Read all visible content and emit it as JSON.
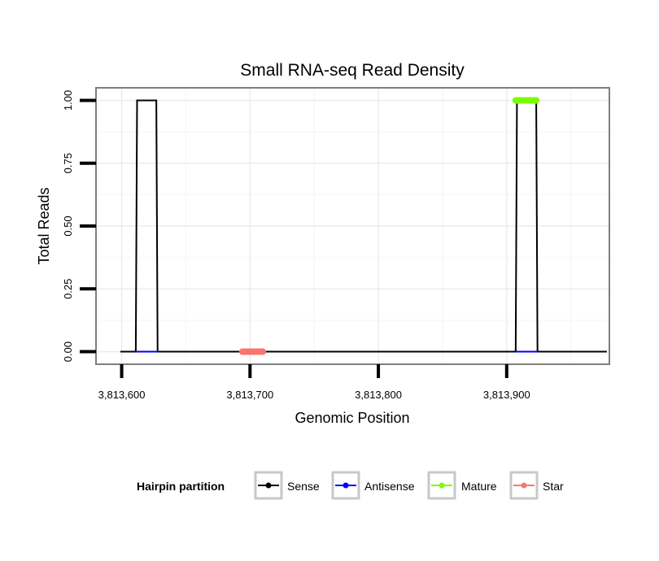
{
  "chart_data": {
    "type": "line",
    "title": "Small RNA-seq Read Density",
    "xlabel": "Genomic Position",
    "ylabel": "Total Reads",
    "xlim": [
      3813580,
      3813980
    ],
    "ylim": [
      -0.05,
      1.05
    ],
    "x_ticks": [
      3813600,
      3813700,
      3813800,
      3813900
    ],
    "x_tick_labels": [
      "3,813,600",
      "3,813,700",
      "3,813,800",
      "3,813,900"
    ],
    "y_ticks": [
      0,
      0.25,
      0.5,
      0.75,
      1
    ],
    "y_tick_labels": [
      "0.00",
      "0.25",
      "0.50",
      "0.75",
      "1.00"
    ],
    "grid": true,
    "legend": {
      "title": "Hairpin partition",
      "position": "bottom",
      "entries": [
        "Sense",
        "Antisense",
        "Mature",
        "Star"
      ]
    },
    "series": [
      {
        "name": "Sense",
        "color": "#000000",
        "x": [
          3813599,
          3813611,
          3813612,
          3813627,
          3813628,
          3813907,
          3813908,
          3813923,
          3813924,
          3813978
        ],
        "y": [
          0,
          0,
          1,
          1,
          0,
          0,
          1,
          1,
          0,
          0
        ]
      },
      {
        "name": "Antisense",
        "color": "#0000ff",
        "segments": [
          {
            "x": [
              3813611,
              3813628
            ],
            "y": [
              0,
              0
            ]
          },
          {
            "x": [
              3813907,
              3813924
            ],
            "y": [
              0,
              0
            ]
          }
        ]
      },
      {
        "name": "Mature",
        "color": "#7cfc00",
        "x": [
          3813907,
          3813923
        ],
        "y": [
          1,
          1
        ]
      },
      {
        "name": "Star",
        "color": "#f8766d",
        "x": [
          3813694,
          3813710
        ],
        "y": [
          0,
          0
        ]
      }
    ]
  }
}
